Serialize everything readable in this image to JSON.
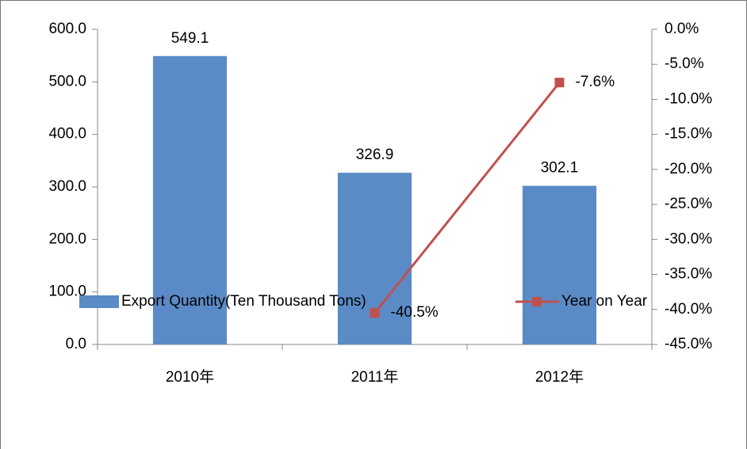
{
  "chart_data": {
    "type": "bar_line",
    "categories": [
      "2010年",
      "2011年",
      "2012年"
    ],
    "series": [
      {
        "name": "Export Quantity(Ten Thousand Tons)",
        "type": "bar",
        "color": "#5b8bc6",
        "values": [
          549.1,
          326.9,
          302.1
        ]
      },
      {
        "name": "Year on Year",
        "type": "line",
        "axis": "y2",
        "color": "#c0504d",
        "values": [
          null,
          -40.5,
          -7.6
        ],
        "value_labels": [
          null,
          "-40.5%",
          "-7.6%"
        ]
      }
    ],
    "ylim": [
      0,
      600
    ],
    "yticks": [
      {
        "value": 0,
        "label": "0.0"
      },
      {
        "value": 100,
        "label": "100.0"
      },
      {
        "value": 200,
        "label": "200.0"
      },
      {
        "value": 300,
        "label": "300.0"
      },
      {
        "value": 400,
        "label": "400.0"
      },
      {
        "value": 500,
        "label": "500.0"
      },
      {
        "value": 600,
        "label": "600.0"
      }
    ],
    "y2lim": [
      -45,
      0
    ],
    "y2ticks": [
      {
        "value": 0,
        "label": "0.0%"
      },
      {
        "value": -5,
        "label": "-5.0%"
      },
      {
        "value": -10,
        "label": "-10.0%"
      },
      {
        "value": -15,
        "label": "-15.0%"
      },
      {
        "value": -20,
        "label": "-20.0%"
      },
      {
        "value": -25,
        "label": "-25.0%"
      },
      {
        "value": -30,
        "label": "-30.0%"
      },
      {
        "value": -35,
        "label": "-35.0%"
      },
      {
        "value": -40,
        "label": "-40.0%"
      },
      {
        "value": -45,
        "label": "-45.0%"
      }
    ],
    "legend": "bottom"
  }
}
